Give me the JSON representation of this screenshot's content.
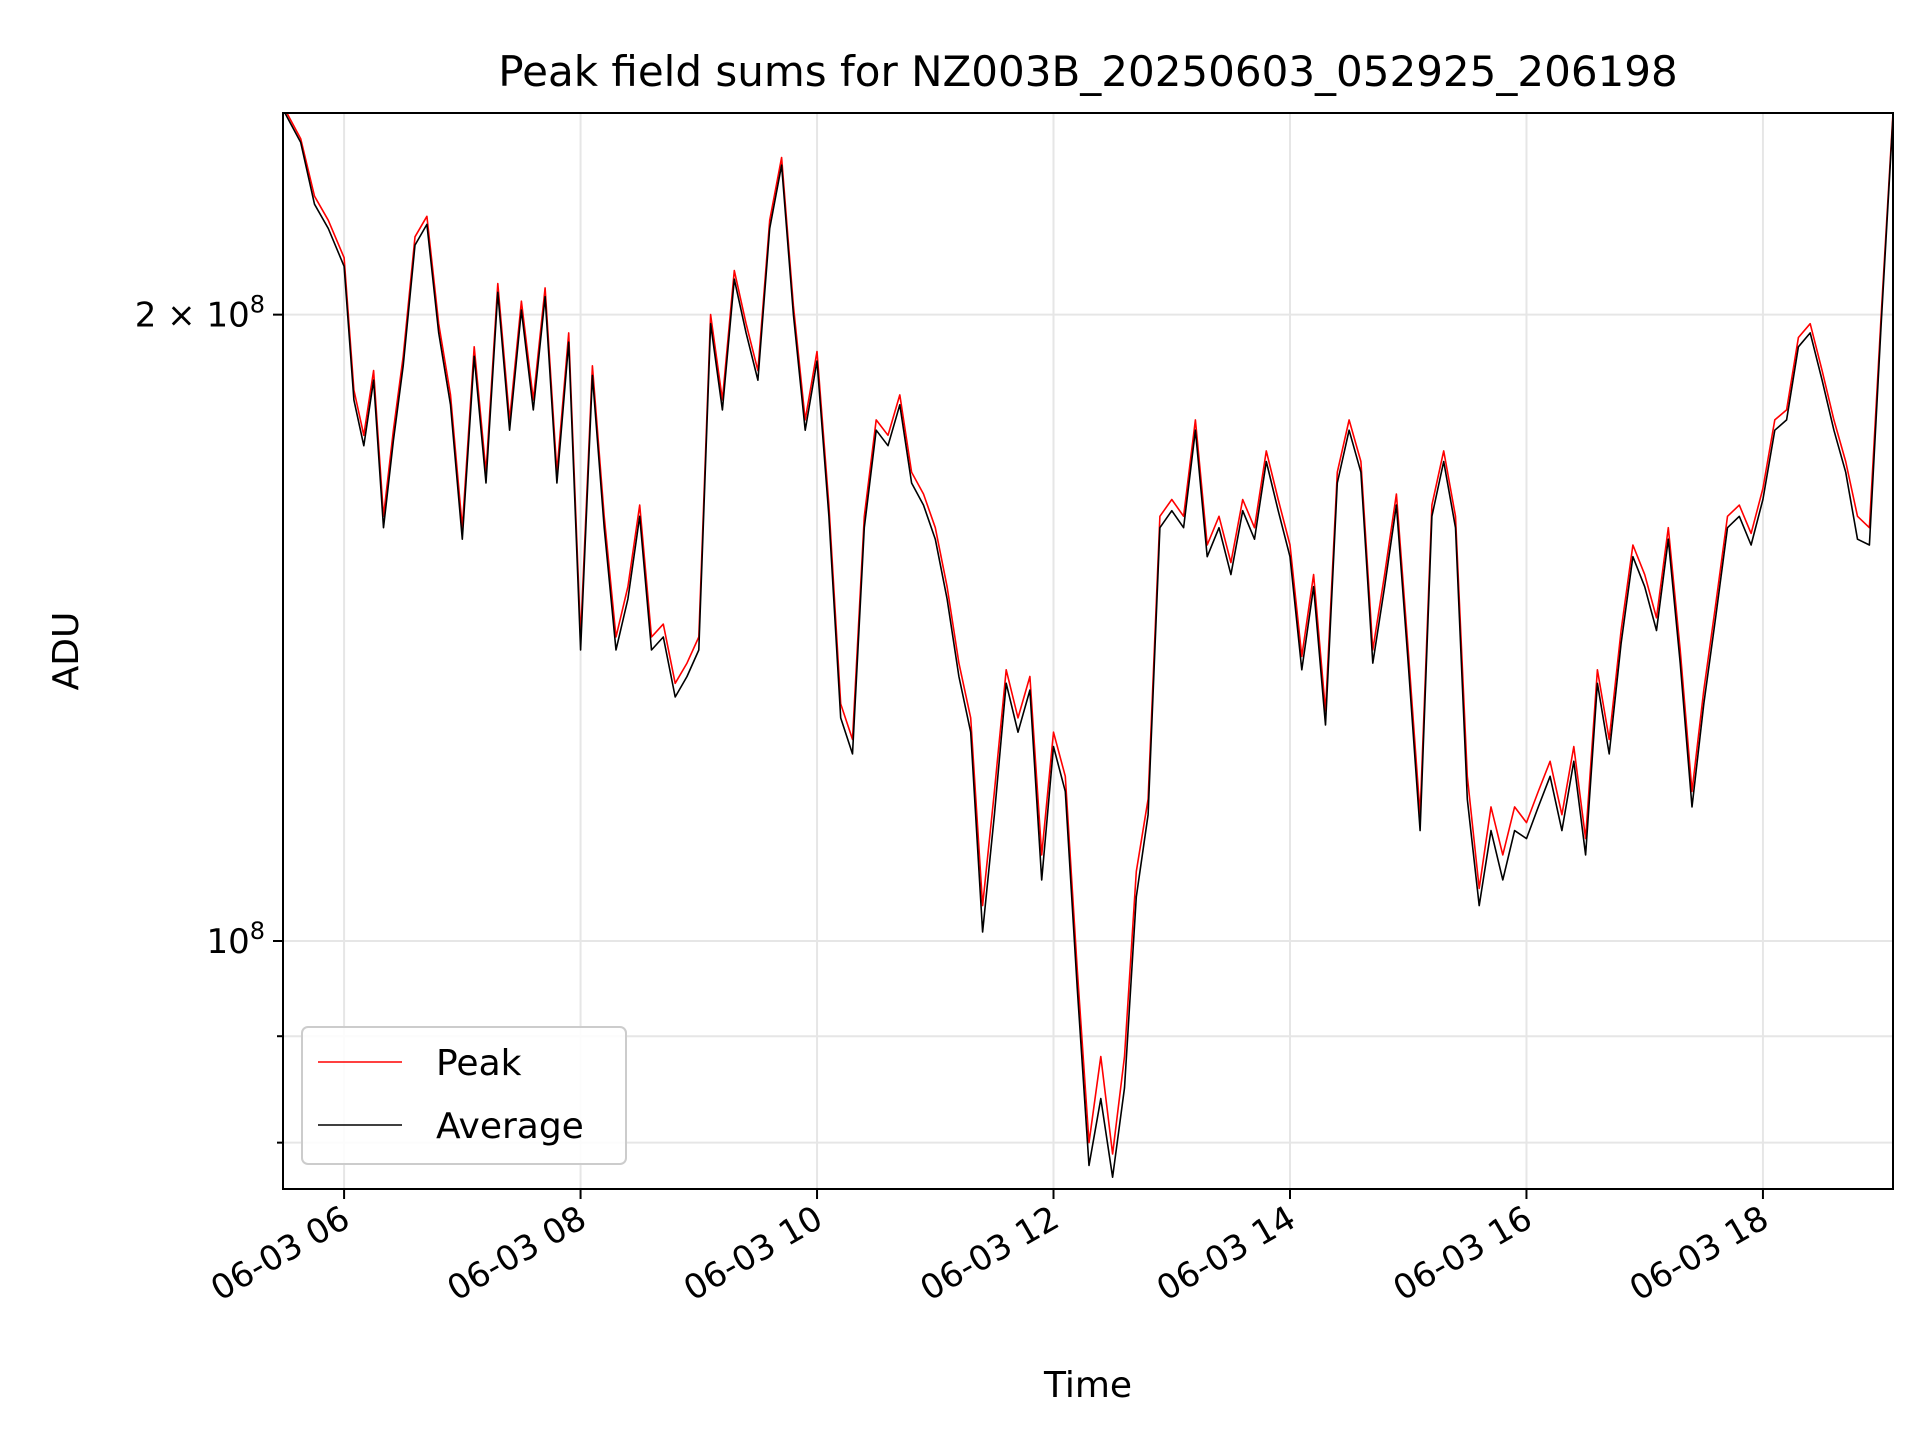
{
  "chart_data": {
    "type": "line",
    "title": "Peak field sums for NZ003B_20250603_052925_206198",
    "xlabel": "Time",
    "ylabel": "ADU",
    "yscale": "log",
    "ylim": [
      76000000,
      250000000
    ],
    "xlim": [
      "2025-06-03 05:29",
      "2025-06-03 19:06"
    ],
    "grid": true,
    "legend_position": "lower-left",
    "x_ticks": [
      {
        "t": "2025-06-03 06:00",
        "label": "06-03 06"
      },
      {
        "t": "2025-06-03 08:00",
        "label": "06-03 08"
      },
      {
        "t": "2025-06-03 10:00",
        "label": "06-03 10"
      },
      {
        "t": "2025-06-03 12:00",
        "label": "06-03 12"
      },
      {
        "t": "2025-06-03 14:00",
        "label": "06-03 14"
      },
      {
        "t": "2025-06-03 16:00",
        "label": "06-03 16"
      },
      {
        "t": "2025-06-03 18:00",
        "label": "06-03 18"
      }
    ],
    "y_major_ticks": [
      {
        "v": 100000000,
        "base": "10",
        "exp": "8",
        "prefix": ""
      },
      {
        "v": 200000000,
        "base": "10",
        "exp": "8",
        "prefix": "2 × "
      }
    ],
    "y_minor_ticks": [
      80000000,
      90000000
    ],
    "series": [
      {
        "name": "Peak",
        "color": "#ff0000",
        "x": [
          "2025-06-03 05:29",
          "2025-06-03 05:38",
          "2025-06-03 05:45",
          "2025-06-03 05:52",
          "2025-06-03 06:00",
          "2025-06-03 06:05",
          "2025-06-03 06:10",
          "2025-06-03 06:15",
          "2025-06-03 06:20",
          "2025-06-03 06:25",
          "2025-06-03 06:30",
          "2025-06-03 06:36",
          "2025-06-03 06:42",
          "2025-06-03 06:48",
          "2025-06-03 06:54",
          "2025-06-03 07:00",
          "2025-06-03 07:06",
          "2025-06-03 07:12",
          "2025-06-03 07:18",
          "2025-06-03 07:24",
          "2025-06-03 07:30",
          "2025-06-03 07:36",
          "2025-06-03 07:42",
          "2025-06-03 07:48",
          "2025-06-03 07:54",
          "2025-06-03 08:00",
          "2025-06-03 08:06",
          "2025-06-03 08:12",
          "2025-06-03 08:18",
          "2025-06-03 08:24",
          "2025-06-03 08:30",
          "2025-06-03 08:36",
          "2025-06-03 08:42",
          "2025-06-03 08:48",
          "2025-06-03 08:54",
          "2025-06-03 09:00",
          "2025-06-03 09:06",
          "2025-06-03 09:12",
          "2025-06-03 09:18",
          "2025-06-03 09:24",
          "2025-06-03 09:30",
          "2025-06-03 09:36",
          "2025-06-03 09:42",
          "2025-06-03 09:48",
          "2025-06-03 09:54",
          "2025-06-03 10:00",
          "2025-06-03 10:06",
          "2025-06-03 10:12",
          "2025-06-03 10:18",
          "2025-06-03 10:24",
          "2025-06-03 10:30",
          "2025-06-03 10:36",
          "2025-06-03 10:42",
          "2025-06-03 10:48",
          "2025-06-03 10:54",
          "2025-06-03 11:00",
          "2025-06-03 11:06",
          "2025-06-03 11:12",
          "2025-06-03 11:18",
          "2025-06-03 11:24",
          "2025-06-03 11:30",
          "2025-06-03 11:36",
          "2025-06-03 11:42",
          "2025-06-03 11:48",
          "2025-06-03 11:54",
          "2025-06-03 12:00",
          "2025-06-03 12:06",
          "2025-06-03 12:12",
          "2025-06-03 12:18",
          "2025-06-03 12:24",
          "2025-06-03 12:30",
          "2025-06-03 12:36",
          "2025-06-03 12:42",
          "2025-06-03 12:48",
          "2025-06-03 12:54",
          "2025-06-03 13:00",
          "2025-06-03 13:06",
          "2025-06-03 13:12",
          "2025-06-03 13:18",
          "2025-06-03 13:24",
          "2025-06-03 13:30",
          "2025-06-03 13:36",
          "2025-06-03 13:42",
          "2025-06-03 13:48",
          "2025-06-03 13:54",
          "2025-06-03 14:00",
          "2025-06-03 14:06",
          "2025-06-03 14:12",
          "2025-06-03 14:18",
          "2025-06-03 14:24",
          "2025-06-03 14:30",
          "2025-06-03 14:36",
          "2025-06-03 14:42",
          "2025-06-03 14:48",
          "2025-06-03 14:54",
          "2025-06-03 15:00",
          "2025-06-03 15:06",
          "2025-06-03 15:12",
          "2025-06-03 15:18",
          "2025-06-03 15:24",
          "2025-06-03 15:30",
          "2025-06-03 15:36",
          "2025-06-03 15:42",
          "2025-06-03 15:48",
          "2025-06-03 15:54",
          "2025-06-03 16:00",
          "2025-06-03 16:06",
          "2025-06-03 16:12",
          "2025-06-03 16:18",
          "2025-06-03 16:24",
          "2025-06-03 16:30",
          "2025-06-03 16:36",
          "2025-06-03 16:42",
          "2025-06-03 16:48",
          "2025-06-03 16:54",
          "2025-06-03 17:00",
          "2025-06-03 17:06",
          "2025-06-03 17:12",
          "2025-06-03 17:18",
          "2025-06-03 17:24",
          "2025-06-03 17:30",
          "2025-06-03 17:36",
          "2025-06-03 17:42",
          "2025-06-03 17:48",
          "2025-06-03 17:54",
          "2025-06-03 18:00",
          "2025-06-03 18:06",
          "2025-06-03 18:12",
          "2025-06-03 18:18",
          "2025-06-03 18:24",
          "2025-06-03 18:30",
          "2025-06-03 18:36",
          "2025-06-03 18:42",
          "2025-06-03 18:48",
          "2025-06-03 18:54",
          "2025-06-03 19:00",
          "2025-06-03 19:06"
        ],
        "y": [
          252000000,
          243000000,
          228000000,
          222000000,
          213000000,
          184000000,
          175000000,
          188000000,
          160000000,
          176000000,
          191000000,
          218000000,
          223000000,
          198000000,
          183000000,
          158000000,
          193000000,
          168000000,
          207000000,
          178000000,
          203000000,
          182000000,
          206000000,
          168000000,
          196000000,
          140000000,
          189000000,
          160000000,
          140000000,
          148000000,
          162000000,
          140000000,
          142000000,
          133000000,
          136000000,
          140000000,
          200000000,
          182000000,
          210000000,
          198000000,
          188000000,
          222000000,
          238000000,
          202000000,
          178000000,
          192000000,
          162000000,
          130000000,
          125000000,
          160000000,
          178000000,
          175000000,
          183000000,
          168000000,
          164000000,
          158000000,
          148000000,
          136000000,
          128000000,
          104000000,
          118000000,
          135000000,
          128000000,
          134000000,
          110000000,
          126000000,
          120000000,
          97000000,
          80000000,
          88000000,
          79000000,
          88000000,
          108000000,
          117000000,
          160000000,
          163000000,
          160000000,
          178000000,
          155000000,
          160000000,
          152000000,
          163000000,
          158000000,
          172000000,
          163000000,
          155000000,
          137000000,
          150000000,
          129000000,
          168000000,
          178000000,
          170000000,
          138000000,
          150000000,
          164000000,
          138000000,
          115000000,
          162000000,
          172000000,
          160000000,
          120000000,
          106000000,
          116000000,
          110000000,
          116000000,
          114000000,
          118000000,
          122000000,
          115000000,
          124000000,
          112000000,
          135000000,
          125000000,
          141000000,
          155000000,
          150000000,
          143000000,
          158000000,
          138000000,
          118000000,
          132000000,
          145000000,
          160000000,
          162000000,
          157000000,
          165000000,
          178000000,
          180000000,
          195000000,
          198000000,
          188000000,
          178000000,
          170000000,
          160000000,
          158000000,
          200000000,
          250000000
        ]
      },
      {
        "name": "Average",
        "color": "#000000",
        "x": [
          "2025-06-03 05:29",
          "2025-06-03 05:38",
          "2025-06-03 05:45",
          "2025-06-03 05:52",
          "2025-06-03 06:00",
          "2025-06-03 06:05",
          "2025-06-03 06:10",
          "2025-06-03 06:15",
          "2025-06-03 06:20",
          "2025-06-03 06:25",
          "2025-06-03 06:30",
          "2025-06-03 06:36",
          "2025-06-03 06:42",
          "2025-06-03 06:48",
          "2025-06-03 06:54",
          "2025-06-03 07:00",
          "2025-06-03 07:06",
          "2025-06-03 07:12",
          "2025-06-03 07:18",
          "2025-06-03 07:24",
          "2025-06-03 07:30",
          "2025-06-03 07:36",
          "2025-06-03 07:42",
          "2025-06-03 07:48",
          "2025-06-03 07:54",
          "2025-06-03 08:00",
          "2025-06-03 08:06",
          "2025-06-03 08:12",
          "2025-06-03 08:18",
          "2025-06-03 08:24",
          "2025-06-03 08:30",
          "2025-06-03 08:36",
          "2025-06-03 08:42",
          "2025-06-03 08:48",
          "2025-06-03 08:54",
          "2025-06-03 09:00",
          "2025-06-03 09:06",
          "2025-06-03 09:12",
          "2025-06-03 09:18",
          "2025-06-03 09:24",
          "2025-06-03 09:30",
          "2025-06-03 09:36",
          "2025-06-03 09:42",
          "2025-06-03 09:48",
          "2025-06-03 09:54",
          "2025-06-03 10:00",
          "2025-06-03 10:06",
          "2025-06-03 10:12",
          "2025-06-03 10:18",
          "2025-06-03 10:24",
          "2025-06-03 10:30",
          "2025-06-03 10:36",
          "2025-06-03 10:42",
          "2025-06-03 10:48",
          "2025-06-03 10:54",
          "2025-06-03 11:00",
          "2025-06-03 11:06",
          "2025-06-03 11:12",
          "2025-06-03 11:18",
          "2025-06-03 11:24",
          "2025-06-03 11:30",
          "2025-06-03 11:36",
          "2025-06-03 11:42",
          "2025-06-03 11:48",
          "2025-06-03 11:54",
          "2025-06-03 12:00",
          "2025-06-03 12:06",
          "2025-06-03 12:12",
          "2025-06-03 12:18",
          "2025-06-03 12:24",
          "2025-06-03 12:30",
          "2025-06-03 12:36",
          "2025-06-03 12:42",
          "2025-06-03 12:48",
          "2025-06-03 12:54",
          "2025-06-03 13:00",
          "2025-06-03 13:06",
          "2025-06-03 13:12",
          "2025-06-03 13:18",
          "2025-06-03 13:24",
          "2025-06-03 13:30",
          "2025-06-03 13:36",
          "2025-06-03 13:42",
          "2025-06-03 13:48",
          "2025-06-03 13:54",
          "2025-06-03 14:00",
          "2025-06-03 14:06",
          "2025-06-03 14:12",
          "2025-06-03 14:18",
          "2025-06-03 14:24",
          "2025-06-03 14:30",
          "2025-06-03 14:36",
          "2025-06-03 14:42",
          "2025-06-03 14:48",
          "2025-06-03 14:54",
          "2025-06-03 15:00",
          "2025-06-03 15:06",
          "2025-06-03 15:12",
          "2025-06-03 15:18",
          "2025-06-03 15:24",
          "2025-06-03 15:30",
          "2025-06-03 15:36",
          "2025-06-03 15:42",
          "2025-06-03 15:48",
          "2025-06-03 15:54",
          "2025-06-03 16:00",
          "2025-06-03 16:06",
          "2025-06-03 16:12",
          "2025-06-03 16:18",
          "2025-06-03 16:24",
          "2025-06-03 16:30",
          "2025-06-03 16:36",
          "2025-06-03 16:42",
          "2025-06-03 16:48",
          "2025-06-03 16:54",
          "2025-06-03 17:00",
          "2025-06-03 17:06",
          "2025-06-03 17:12",
          "2025-06-03 17:18",
          "2025-06-03 17:24",
          "2025-06-03 17:30",
          "2025-06-03 17:36",
          "2025-06-03 17:42",
          "2025-06-03 17:48",
          "2025-06-03 17:54",
          "2025-06-03 18:00",
          "2025-06-03 18:06",
          "2025-06-03 18:12",
          "2025-06-03 18:18",
          "2025-06-03 18:24",
          "2025-06-03 18:30",
          "2025-06-03 18:36",
          "2025-06-03 18:42",
          "2025-06-03 18:48",
          "2025-06-03 18:54",
          "2025-06-03 19:00",
          "2025-06-03 19:06"
        ],
        "y": [
          251000000,
          242000000,
          226000000,
          220000000,
          211000000,
          182000000,
          173000000,
          186000000,
          158000000,
          174000000,
          189000000,
          216000000,
          221000000,
          196000000,
          181000000,
          156000000,
          191000000,
          166000000,
          205000000,
          176000000,
          201000000,
          180000000,
          204000000,
          166000000,
          194000000,
          138000000,
          187000000,
          158000000,
          138000000,
          146000000,
          160000000,
          138000000,
          140000000,
          131000000,
          134000000,
          138000000,
          198000000,
          180000000,
          208000000,
          196000000,
          186000000,
          220000000,
          236000000,
          200000000,
          176000000,
          190000000,
          160000000,
          128000000,
          123000000,
          158000000,
          176000000,
          173000000,
          181000000,
          166000000,
          162000000,
          156000000,
          146000000,
          134000000,
          126000000,
          101000000,
          115000000,
          133000000,
          126000000,
          132000000,
          107000000,
          124000000,
          118000000,
          95000000,
          78000000,
          84000000,
          77000000,
          85000000,
          105000000,
          115000000,
          158000000,
          161000000,
          158000000,
          176000000,
          153000000,
          158000000,
          150000000,
          161000000,
          156000000,
          170000000,
          161000000,
          153000000,
          135000000,
          148000000,
          127000000,
          166000000,
          176000000,
          168000000,
          136000000,
          148000000,
          162000000,
          136000000,
          113000000,
          160000000,
          170000000,
          158000000,
          117000000,
          104000000,
          113000000,
          107000000,
          113000000,
          112000000,
          116000000,
          120000000,
          113000000,
          122000000,
          110000000,
          133000000,
          123000000,
          139000000,
          153000000,
          148000000,
          141000000,
          156000000,
          136000000,
          116000000,
          130000000,
          143000000,
          158000000,
          160000000,
          155000000,
          163000000,
          176000000,
          178000000,
          193000000,
          196000000,
          186000000,
          176000000,
          168000000,
          156000000,
          155000000,
          198000000,
          249000000
        ]
      }
    ]
  }
}
